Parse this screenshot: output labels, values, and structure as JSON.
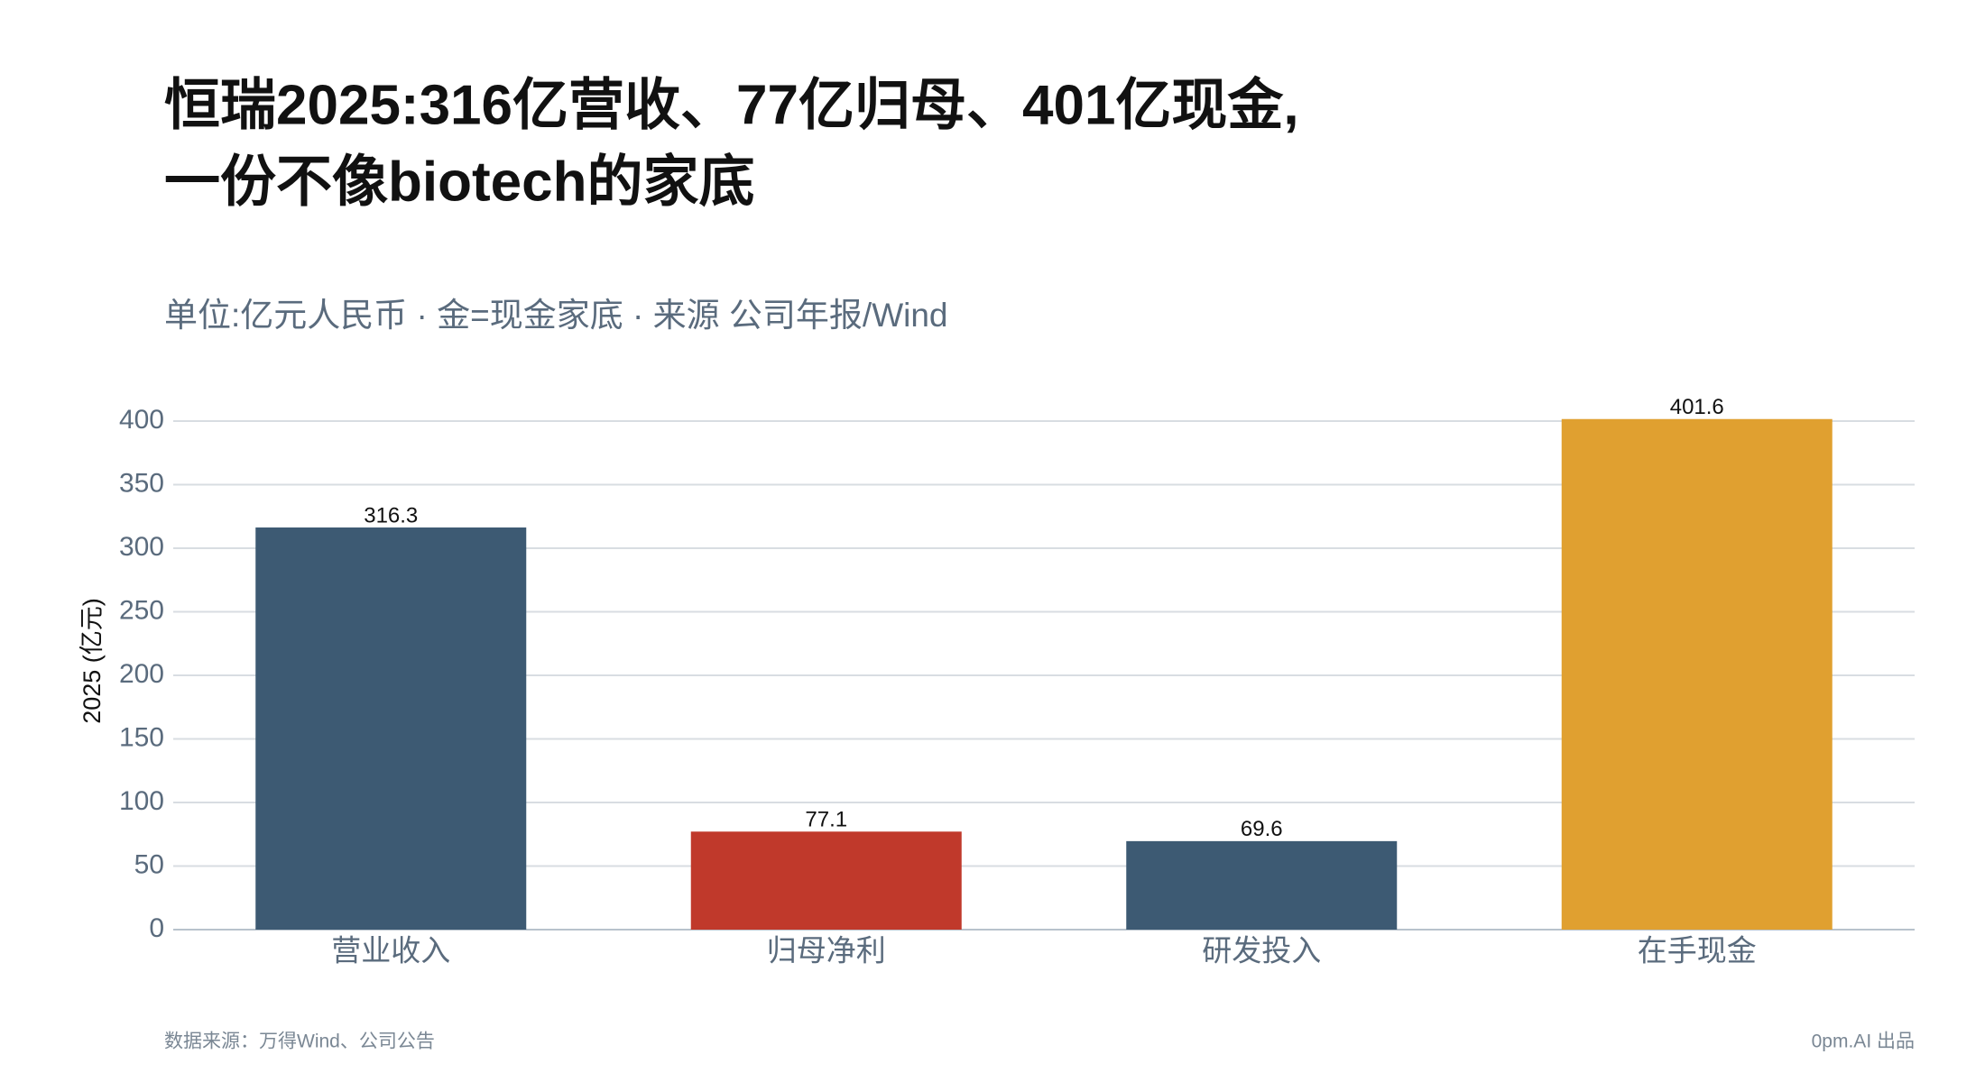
{
  "chart_data": {
    "type": "bar",
    "title": [
      "恒瑞2025:316亿营收、77亿归母、401亿现金,",
      "一份不像biotech的家底"
    ],
    "subtitle": "单位:亿元人民币 · 金=现金家底 · 来源 公司年报/Wind",
    "ylabel": "2025 (亿元)",
    "categories": [
      "营业收入",
      "归母净利",
      "研发投入",
      "在手现金"
    ],
    "values": [
      316.3,
      77.1,
      69.6,
      401.6
    ],
    "colors": [
      "#3d5a73",
      "#c0392b",
      "#3d5a73",
      "#e0a030"
    ],
    "ylim": [
      0,
      400
    ],
    "yticks": [
      0,
      50,
      100,
      150,
      200,
      250,
      300,
      350,
      400
    ],
    "grid": true,
    "footer_left": "数据来源：万得Wind、公司公告",
    "footer_right": "0pm.AI 出品"
  }
}
